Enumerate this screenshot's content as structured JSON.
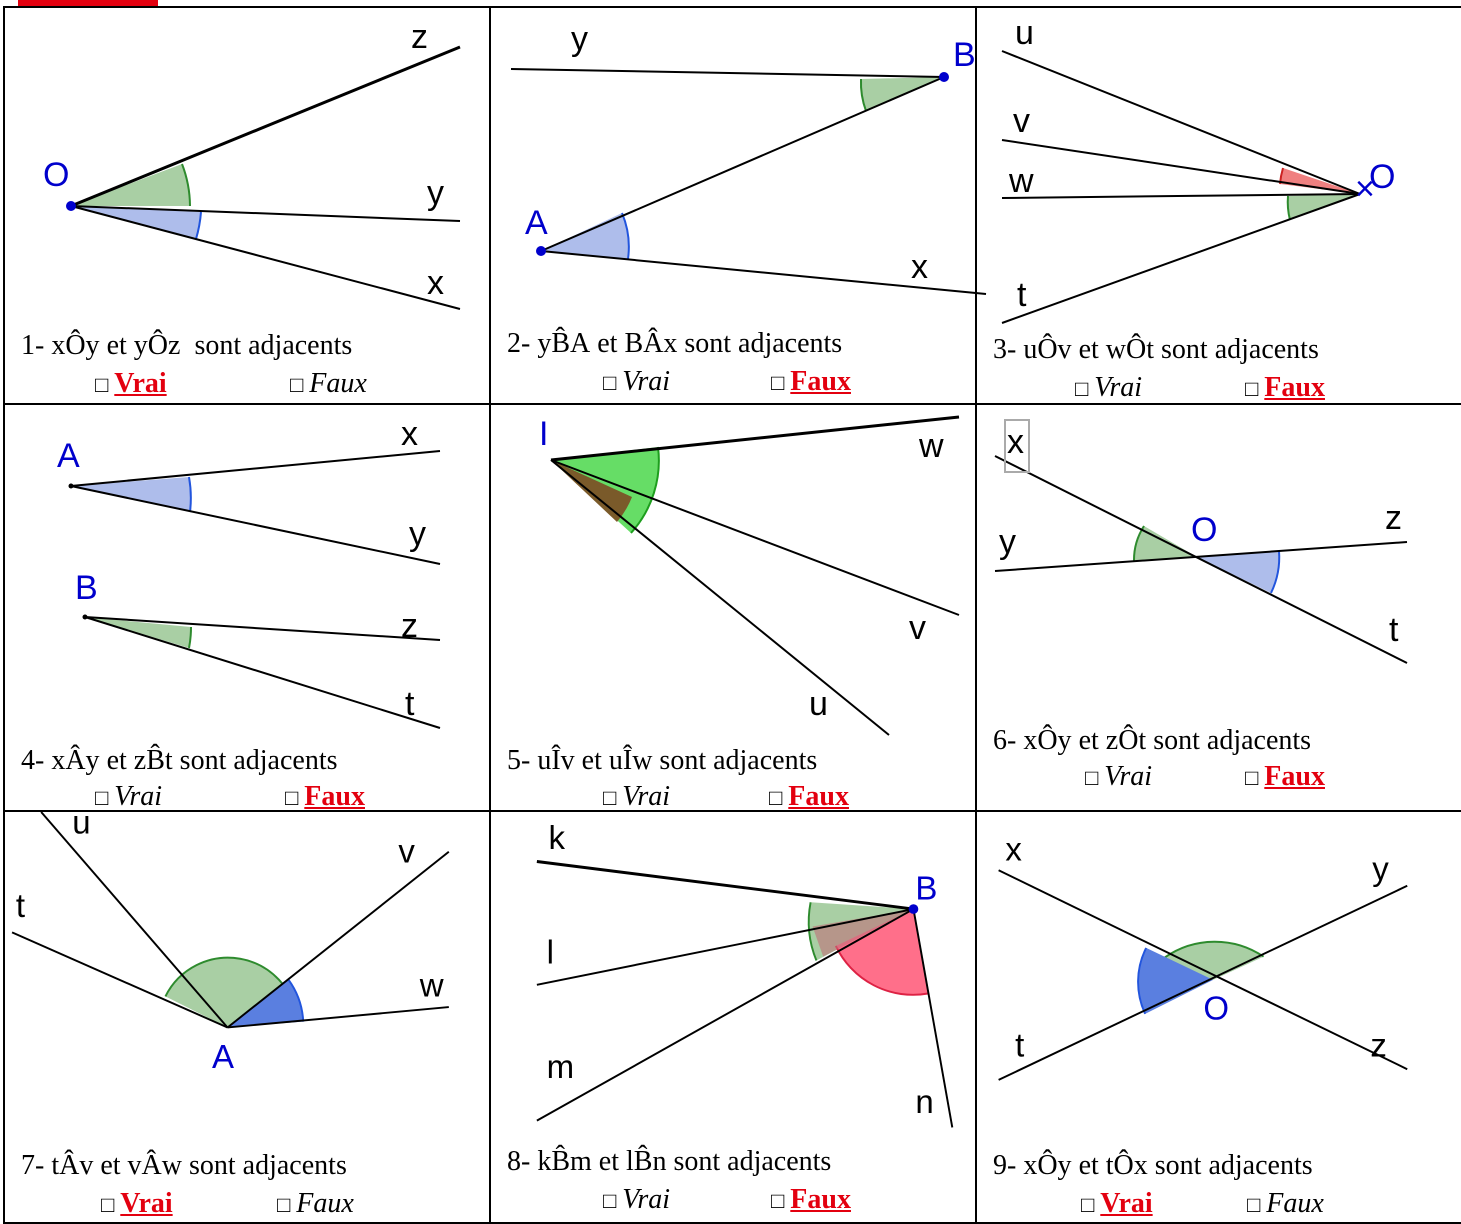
{
  "exercises": [
    {
      "number": "1-",
      "angle1": "xÔy",
      "connector": "et",
      "angle2": "yÔz",
      "statement": "sont adjacents",
      "vrai": "Vrai",
      "faux": "Faux",
      "answer": "vrai",
      "labels": {
        "O": "O",
        "z": "z",
        "y": "y",
        "x": "x"
      }
    },
    {
      "number": "2-",
      "angle1": "yB̂A",
      "connector": "et",
      "angle2": "BÂx",
      "statement": "sont adjacents",
      "vrai": "Vrai",
      "faux": "Faux",
      "answer": "faux",
      "labels": {
        "y": "y",
        "B": "B",
        "A": "A",
        "x": "x"
      }
    },
    {
      "number": "3-",
      "angle1": "uÔv",
      "connector": "et",
      "angle2": "wÔt",
      "statement": "sont adjacents",
      "vrai": "Vrai",
      "faux": "Faux",
      "answer": "faux",
      "labels": {
        "u": "u",
        "v": "v",
        "w": "w",
        "t": "t",
        "O": "O"
      }
    },
    {
      "number": "4-",
      "angle1": "xÂy",
      "connector": "et",
      "angle2": "zB̂t",
      "statement": "sont adjacents",
      "vrai": "Vrai",
      "faux": "Faux",
      "answer": "faux",
      "labels": {
        "A": "A",
        "x": "x",
        "y": "y",
        "B": "B",
        "z": "z",
        "t": "t"
      }
    },
    {
      "number": "5-",
      "angle1": "uÎv",
      "connector": "et",
      "angle2": "uÎw",
      "statement": "sont adjacents",
      "vrai": "Vrai",
      "faux": "Faux",
      "answer": "faux",
      "labels": {
        "I": "I",
        "w": "w",
        "v": "v",
        "u": "u"
      }
    },
    {
      "number": "6-",
      "angle1": "xÔy",
      "connector": "et",
      "angle2": "zÔt",
      "statement": "sont adjacents",
      "vrai": "Vrai",
      "faux": "Faux",
      "answer": "faux",
      "labels": {
        "x": "x",
        "y": "y",
        "O": "O",
        "z": "z",
        "t": "t"
      }
    },
    {
      "number": "7-",
      "angle1": "tÂv",
      "connector": "et",
      "angle2": "vÂw",
      "statement": "sont adjacents",
      "vrai": "Vrai",
      "faux": "Faux",
      "answer": "vrai",
      "labels": {
        "u": "u",
        "v": "v",
        "t": "t",
        "w": "w",
        "A": "A"
      }
    },
    {
      "number": "8-",
      "angle1": "kB̂m",
      "connector": "et",
      "angle2": "lB̂n",
      "statement": "sont adjacents",
      "vrai": "Vrai",
      "faux": "Faux",
      "answer": "faux",
      "labels": {
        "k": "k",
        "B": "B",
        "l": "l",
        "m": "m",
        "n": "n"
      }
    },
    {
      "number": "9-",
      "angle1": "xÔy",
      "connector": "et",
      "angle2": "tÔx",
      "statement": "sont adjacents",
      "vrai": "Vrai",
      "faux": "Faux",
      "answer": "vrai",
      "labels": {
        "x": "x",
        "y": "y",
        "O": "O",
        "t": "t",
        "z": "z"
      }
    }
  ],
  "box_symbol": "□",
  "colors": {
    "point": "#0000cc",
    "green_fill": "#a9cfa4",
    "blue_fill": "#aebdeb",
    "red_fill": "#f08080",
    "answer": "#e3000f",
    "dark_blue_fill": "#5a7fe0",
    "bright_green": "#66dd66",
    "brown": "#7a5a2a",
    "pink": "#ff6f8a"
  }
}
